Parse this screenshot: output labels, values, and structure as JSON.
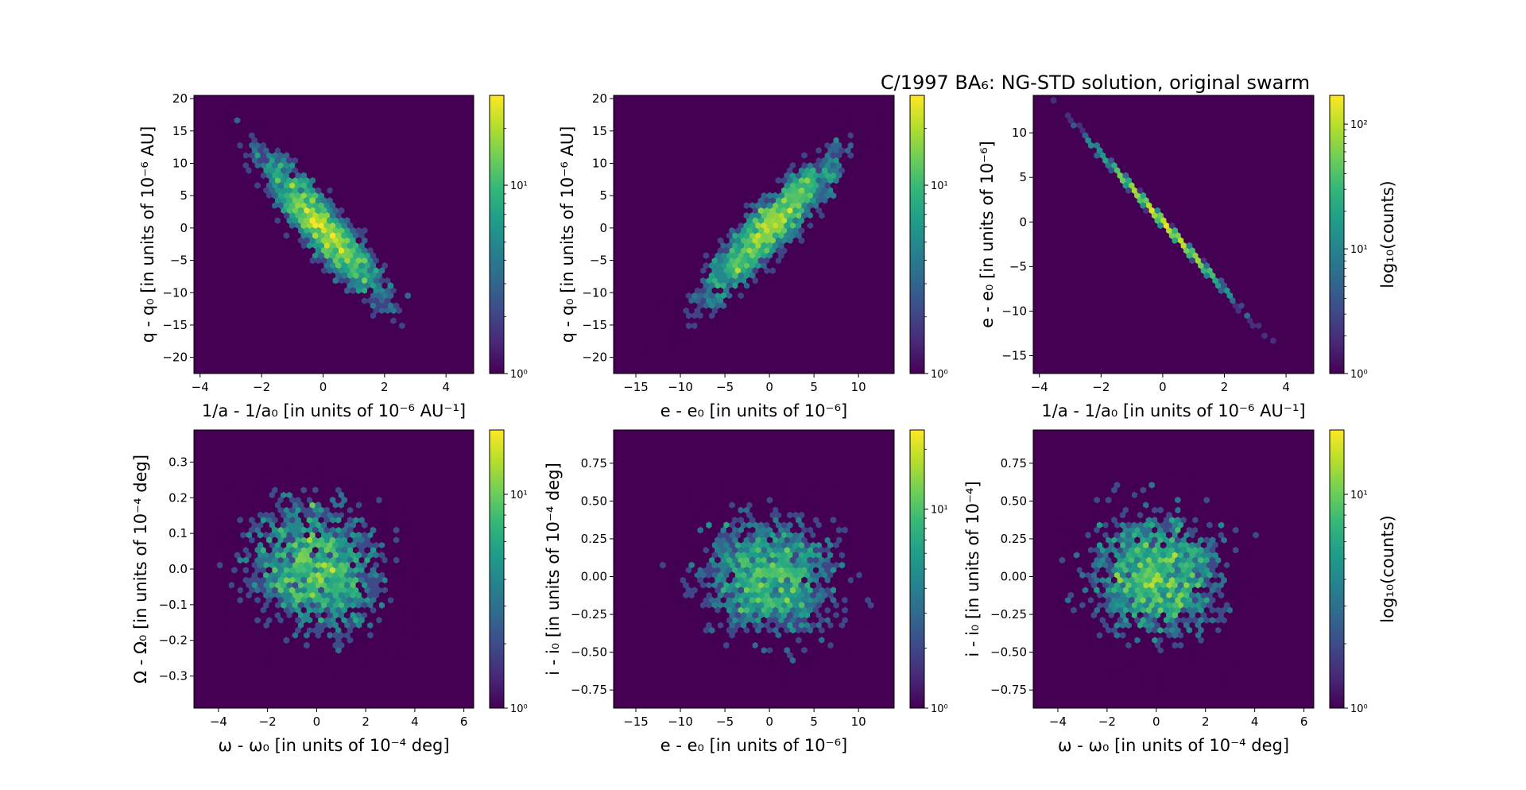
{
  "figure_title": "C/1997 BA₆: NG-STD solution, original swarm",
  "colormap": [
    "#440154",
    "#482878",
    "#3e4989",
    "#31688e",
    "#26828e",
    "#1f9e89",
    "#35b779",
    "#6ece58",
    "#b5de2b",
    "#fde725"
  ],
  "background_color": "#440154",
  "chart_data": [
    {
      "type": "heatmap",
      "subtype": "hexbin",
      "xlabel": "1/a - 1/a₀ [in units of 10⁻⁶ AU⁻¹]",
      "ylabel": "q - q₀ [in units of 10⁻⁶ AU]",
      "xlim": [
        -4.2,
        4.9
      ],
      "ylim": [
        -22.5,
        20.5
      ],
      "xticks": [
        -4,
        -2,
        0,
        2,
        4
      ],
      "xtick_labels": [
        "−4",
        "−2",
        "0",
        "2",
        "4"
      ],
      "yticks": [
        -20,
        -15,
        -10,
        -5,
        0,
        5,
        10,
        15,
        20
      ],
      "ytick_labels": [
        "−20",
        "−15",
        "−10",
        "−5",
        "0",
        "5",
        "10",
        "15",
        "20"
      ],
      "distribution": {
        "mean_x": 0,
        "mean_y": 0,
        "sd_x": 1.05,
        "sd_y": 5.9,
        "correlation": -0.9
      },
      "colorbar": {
        "scale": "log",
        "range": [
          1,
          30
        ],
        "ticks": [
          1,
          10
        ],
        "tick_labels": [
          "10⁰",
          "10¹"
        ],
        "label": ""
      }
    },
    {
      "type": "heatmap",
      "subtype": "hexbin",
      "xlabel": "e - e₀ [in units of 10⁻⁶]",
      "ylabel": "q - q₀ [in units of 10⁻⁶ AU]",
      "xlim": [
        -17.5,
        14
      ],
      "ylim": [
        -22.5,
        20.5
      ],
      "xticks": [
        -15,
        -10,
        -5,
        0,
        5,
        10
      ],
      "xtick_labels": [
        "−15",
        "−10",
        "−5",
        "0",
        "5",
        "10"
      ],
      "yticks": [
        -20,
        -15,
        -10,
        -5,
        0,
        5,
        10,
        15,
        20
      ],
      "ytick_labels": [
        "−20",
        "−15",
        "−10",
        "−5",
        "0",
        "5",
        "10",
        "15",
        "20"
      ],
      "distribution": {
        "mean_x": 0,
        "mean_y": 0,
        "sd_x": 4.0,
        "sd_y": 5.9,
        "correlation": 0.9
      },
      "colorbar": {
        "scale": "log",
        "range": [
          1,
          30
        ],
        "ticks": [
          1,
          10
        ],
        "tick_labels": [
          "10⁰",
          "10¹"
        ],
        "label": ""
      }
    },
    {
      "type": "heatmap",
      "subtype": "hexbin",
      "xlabel": "1/a - 1/a₀ [in units of 10⁻⁶ AU⁻¹]",
      "ylabel": "e - e₀ [in units of 10⁻⁶]",
      "xlim": [
        -4.2,
        4.9
      ],
      "ylim": [
        -17,
        14.2
      ],
      "xticks": [
        -4,
        -2,
        0,
        2,
        4
      ],
      "xtick_labels": [
        "−4",
        "−2",
        "0",
        "2",
        "4"
      ],
      "yticks": [
        -15,
        -10,
        -5,
        0,
        5,
        10
      ],
      "ytick_labels": [
        "−15",
        "−10",
        "−5",
        "0",
        "5",
        "10"
      ],
      "distribution": {
        "mean_x": 0,
        "mean_y": 0,
        "sd_x": 1.05,
        "sd_y": 4.0,
        "correlation": -0.9995
      },
      "colorbar": {
        "scale": "log",
        "range": [
          1,
          170
        ],
        "ticks": [
          1,
          10,
          100
        ],
        "tick_labels": [
          "10⁰",
          "10¹",
          "10²"
        ],
        "label": "log₁₀(counts)"
      }
    },
    {
      "type": "heatmap",
      "subtype": "hexbin",
      "xlabel": "ω - ω₀ [in units of 10⁻⁴ deg]",
      "ylabel": "Ω - Ω₀ [in units of 10⁻⁴ deg]",
      "xlim": [
        -5,
        6.4
      ],
      "ylim": [
        -0.39,
        0.39
      ],
      "xticks": [
        -4,
        -2,
        0,
        2,
        4,
        6
      ],
      "xtick_labels": [
        "−4",
        "−2",
        "0",
        "2",
        "4",
        "6"
      ],
      "yticks": [
        -0.3,
        -0.2,
        -0.1,
        0.0,
        0.1,
        0.2,
        0.3
      ],
      "ytick_labels": [
        "−0.3",
        "−0.2",
        "−0.1",
        "0.0",
        "0.1",
        "0.2",
        "0.3"
      ],
      "distribution": {
        "mean_x": 0,
        "mean_y": 0,
        "sd_x": 1.45,
        "sd_y": 0.1,
        "correlation": -0.1
      },
      "colorbar": {
        "scale": "log",
        "range": [
          1,
          20
        ],
        "ticks": [
          1,
          10
        ],
        "tick_labels": [
          "10⁰",
          "10¹"
        ],
        "label": ""
      }
    },
    {
      "type": "heatmap",
      "subtype": "hexbin",
      "xlabel": "e - e₀ [in units of 10⁻⁶]",
      "ylabel": "i - i₀ [in units of 10⁻⁴ deg]",
      "xlim": [
        -17.5,
        14
      ],
      "ylim": [
        -0.87,
        0.97
      ],
      "xticks": [
        -15,
        -10,
        -5,
        0,
        5,
        10
      ],
      "xtick_labels": [
        "−15",
        "−10",
        "−5",
        "0",
        "5",
        "10"
      ],
      "yticks": [
        -0.75,
        -0.5,
        -0.25,
        0.0,
        0.25,
        0.5,
        0.75
      ],
      "ytick_labels": [
        "−0.75",
        "−0.50",
        "−0.25",
        "0.00",
        "0.25",
        "0.50",
        "0.75"
      ],
      "distribution": {
        "mean_x": 0,
        "mean_y": 0,
        "sd_x": 4.0,
        "sd_y": 0.22,
        "correlation": 0.0
      },
      "colorbar": {
        "scale": "log",
        "range": [
          1,
          25
        ],
        "ticks": [
          1,
          10
        ],
        "tick_labels": [
          "10⁰",
          "10¹"
        ],
        "label": ""
      }
    },
    {
      "type": "heatmap",
      "subtype": "hexbin",
      "xlabel": "ω - ω₀ [in units of 10⁻⁴ deg]",
      "ylabel": "i - i₀ [in units of 10⁻⁴]",
      "xlim": [
        -5,
        6.4
      ],
      "ylim": [
        -0.87,
        0.97
      ],
      "xticks": [
        -4,
        -2,
        0,
        2,
        4,
        6
      ],
      "xtick_labels": [
        "−4",
        "−2",
        "0",
        "2",
        "4",
        "6"
      ],
      "yticks": [
        -0.75,
        -0.5,
        -0.25,
        0.0,
        0.25,
        0.5,
        0.75
      ],
      "ytick_labels": [
        "−0.75",
        "−0.50",
        "−0.25",
        "0.00",
        "0.25",
        "0.50",
        "0.75"
      ],
      "distribution": {
        "mean_x": 0,
        "mean_y": 0,
        "sd_x": 1.45,
        "sd_y": 0.22,
        "correlation": -0.05
      },
      "colorbar": {
        "scale": "log",
        "range": [
          1,
          20
        ],
        "ticks": [
          1,
          10
        ],
        "tick_labels": [
          "10⁰",
          "10¹"
        ],
        "label": "log₁₀(counts)"
      }
    }
  ]
}
